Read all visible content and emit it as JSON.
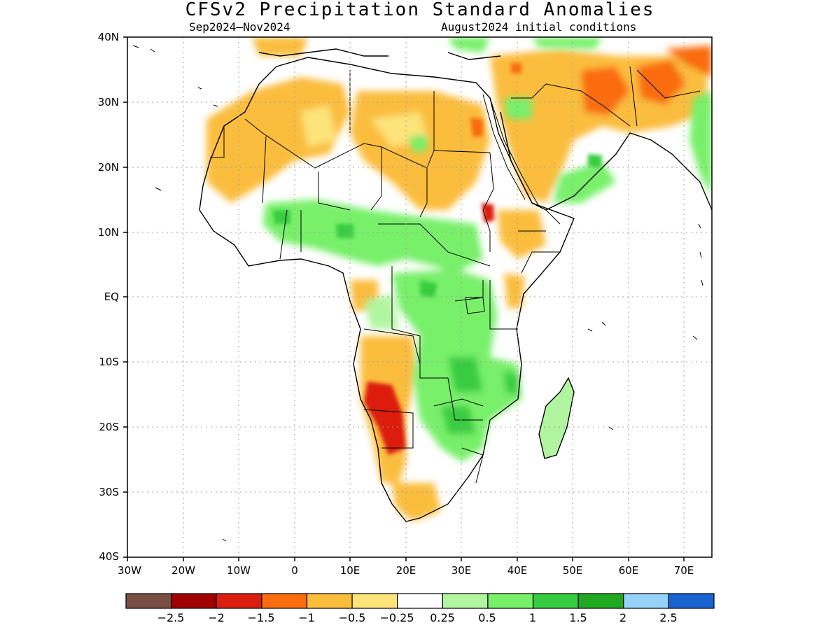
{
  "title": "CFSv2 Precipitation Standard Anomalies",
  "subtitle_left": "Sep2024–Nov2024",
  "subtitle_right": "August2024 initial conditions",
  "lat_labels": [
    "40N",
    "30N",
    "20N",
    "10N",
    "EQ",
    "10S",
    "20S",
    "30S",
    "40S"
  ],
  "lon_labels": [
    "30W",
    "20W",
    "10W",
    "0",
    "10E",
    "20E",
    "30E",
    "40E",
    "50E",
    "60E",
    "70E"
  ],
  "colorbar": {
    "colors": [
      "#7a5044",
      "#a00000",
      "#dc1e10",
      "#fa6c10",
      "#fbbd3c",
      "#fde47a",
      "#ffffff",
      "#b2f5a0",
      "#78f06a",
      "#38cc40",
      "#20a820",
      "#96d2fa",
      "#1a64d2"
    ],
    "labels": [
      "−2.5",
      "−2",
      "−1.5",
      "−1",
      "−0.5",
      "−0.25",
      "0.25",
      "0.5",
      "1",
      "1.5",
      "2",
      "2.5"
    ]
  },
  "chart_data": {
    "type": "heatmap",
    "variable": "Precipitation Standard Anomalies",
    "lat_range": [
      -40,
      40
    ],
    "lon_range": [
      -30,
      75
    ],
    "levels": [
      -2.5,
      -2,
      -1.5,
      -1,
      -0.5,
      -0.25,
      0.25,
      0.5,
      1,
      1.5,
      2,
      2.5
    ]
  }
}
